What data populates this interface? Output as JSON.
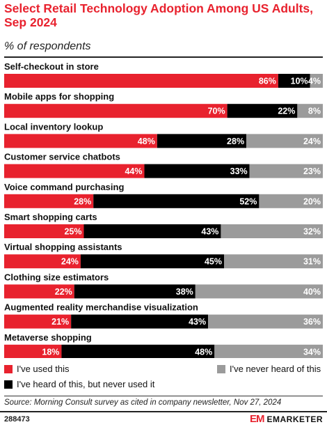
{
  "header": {
    "title": "Select Retail Technology Adoption Among US Adults, Sep 2024",
    "subtitle": "% of respondents"
  },
  "colors": {
    "used": "#e8222e",
    "heard": "#000000",
    "never": "#9b9b9b"
  },
  "chart_data": {
    "type": "bar",
    "orientation": "horizontal",
    "stacked": true,
    "categories": [
      "Self-checkout in store",
      "Mobile apps for shopping",
      "Local inventory lookup",
      "Customer service chatbots",
      "Voice command purchasing",
      "Smart shopping carts",
      "Virtual shopping assistants",
      "Clothing size estimators",
      "Augmented reality merchandise visualization",
      "Metaverse shopping"
    ],
    "series": [
      {
        "name": "I've used this",
        "values": [
          86,
          70,
          48,
          44,
          28,
          25,
          24,
          22,
          21,
          18
        ]
      },
      {
        "name": "I've heard of this, but never used it",
        "values": [
          10,
          22,
          28,
          33,
          52,
          43,
          45,
          38,
          43,
          48
        ]
      },
      {
        "name": "I've never heard of this",
        "values": [
          4,
          8,
          24,
          23,
          20,
          32,
          31,
          40,
          36,
          34
        ]
      }
    ],
    "value_suffix": "%",
    "xlim": [
      0,
      100
    ],
    "legend_position": "bottom"
  },
  "legend": {
    "used": "I've used this",
    "heard": "I've heard of this, but never used it",
    "never": "I've never heard of this"
  },
  "footer": {
    "source": "Source: Morning Consult survey as cited in company newsletter, Nov 27, 2024",
    "chart_id": "288473",
    "brand_mark": "EM",
    "brand_name": "EMARKETER"
  }
}
